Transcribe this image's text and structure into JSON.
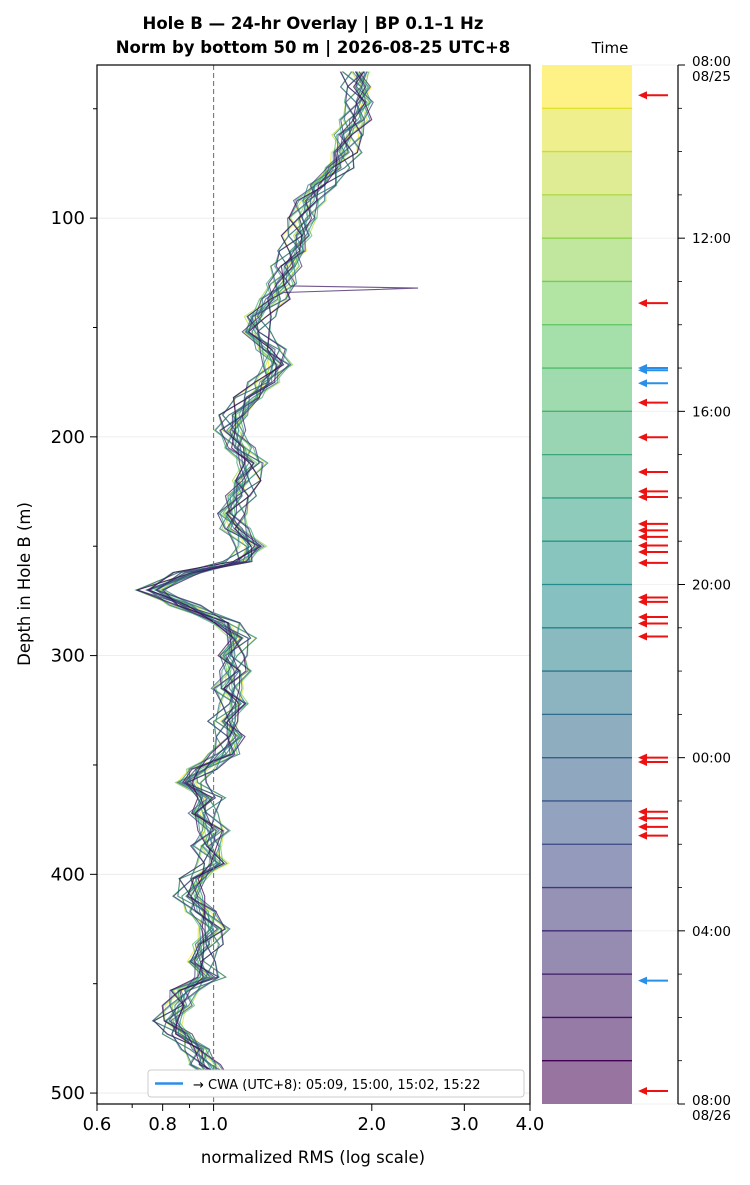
{
  "chart_data": {
    "type": "line",
    "title_line1": "Hole B — 24-hr Overlay  |  BP 0.1–1 Hz",
    "title_line2": "Norm by bottom 50 m  |  2026-08-25 UTC+8",
    "xlabel": "normalized RMS  (log scale)",
    "ylabel": "Depth in Hole B (m)",
    "xscale": "log",
    "xlim": [
      0.6,
      4.0
    ],
    "ylim": [
      505,
      30
    ],
    "x_ticks": [
      {
        "value": 0.6,
        "label": "0.6"
      },
      {
        "value": 0.8,
        "label": "0.8"
      },
      {
        "value": 1.0,
        "label": "1.0"
      },
      {
        "value": 2.0,
        "label": "2.0"
      },
      {
        "value": 3.0,
        "label": "3.0"
      },
      {
        "value": 4.0,
        "label": "4.0"
      }
    ],
    "y_ticks": [
      {
        "value": 100,
        "label": "100"
      },
      {
        "value": 200,
        "label": "200"
      },
      {
        "value": 300,
        "label": "300"
      },
      {
        "value": 400,
        "label": "400"
      },
      {
        "value": 500,
        "label": "500"
      }
    ],
    "reference_line_x": 1.0,
    "grid": "horizontal",
    "colormap": [
      "#fde725",
      "#5ec962",
      "#21918c",
      "#3b528b",
      "#440154"
    ],
    "mean_profile": [
      [
        33,
        1.87
      ],
      [
        40,
        1.88
      ],
      [
        47,
        1.9
      ],
      [
        55,
        1.86
      ],
      [
        62,
        1.8
      ],
      [
        70,
        1.78
      ],
      [
        77,
        1.72
      ],
      [
        85,
        1.6
      ],
      [
        92,
        1.52
      ],
      [
        100,
        1.48
      ],
      [
        108,
        1.45
      ],
      [
        115,
        1.42
      ],
      [
        122,
        1.38
      ],
      [
        130,
        1.35
      ],
      [
        137,
        1.3
      ],
      [
        145,
        1.22
      ],
      [
        152,
        1.2
      ],
      [
        160,
        1.28
      ],
      [
        167,
        1.32
      ],
      [
        175,
        1.25
      ],
      [
        182,
        1.17
      ],
      [
        190,
        1.1
      ],
      [
        197,
        1.08
      ],
      [
        205,
        1.12
      ],
      [
        212,
        1.18
      ],
      [
        220,
        1.15
      ],
      [
        227,
        1.12
      ],
      [
        235,
        1.08
      ],
      [
        242,
        1.1
      ],
      [
        250,
        1.18
      ],
      [
        257,
        1.12
      ],
      [
        262,
        0.9
      ],
      [
        270,
        0.76
      ],
      [
        277,
        0.88
      ],
      [
        285,
        1.05
      ],
      [
        292,
        1.12
      ],
      [
        300,
        1.08
      ],
      [
        307,
        1.1
      ],
      [
        315,
        1.06
      ],
      [
        322,
        1.1
      ],
      [
        330,
        1.05
      ],
      [
        337,
        1.08
      ],
      [
        345,
        1.05
      ],
      [
        352,
        0.95
      ],
      [
        358,
        0.9
      ],
      [
        365,
        0.98
      ],
      [
        372,
        0.95
      ],
      [
        380,
        1.0
      ],
      [
        387,
        0.97
      ],
      [
        395,
        1.0
      ],
      [
        402,
        0.92
      ],
      [
        410,
        0.9
      ],
      [
        417,
        0.95
      ],
      [
        425,
        1.0
      ],
      [
        432,
        0.97
      ],
      [
        440,
        0.94
      ],
      [
        447,
        0.98
      ],
      [
        453,
        0.88
      ],
      [
        460,
        0.86
      ],
      [
        467,
        0.82
      ],
      [
        473,
        0.86
      ],
      [
        480,
        0.93
      ],
      [
        487,
        0.96
      ],
      [
        495,
        1.05
      ],
      [
        500,
        1.12
      ]
    ],
    "spike": {
      "depth": 132,
      "value": 2.45
    },
    "legend": {
      "label": "→ CWA (UTC+8): 05:09, 15:00, 15:02, 15:22",
      "color": "#2a8fe8"
    },
    "time_axis": {
      "label": "Time",
      "ticks": [
        {
          "hour": 0,
          "label": "08:00",
          "sublabel": "08/25"
        },
        {
          "hour": 4,
          "label": "12:00",
          "sublabel": ""
        },
        {
          "hour": 8,
          "label": "16:00",
          "sublabel": ""
        },
        {
          "hour": 12,
          "label": "20:00",
          "sublabel": ""
        },
        {
          "hour": 16,
          "label": "00:00",
          "sublabel": ""
        },
        {
          "hour": 20,
          "label": "04:00",
          "sublabel": ""
        },
        {
          "hour": 24,
          "label": "08:00",
          "sublabel": "08/26"
        }
      ],
      "bands": 24
    },
    "event_arrows": {
      "red_hours": [
        0.7,
        5.5,
        7.8,
        8.6,
        9.4,
        9.85,
        9.98,
        10.6,
        10.75,
        10.9,
        11.1,
        11.25,
        11.5,
        12.3,
        12.4,
        12.75,
        12.9,
        13.2,
        16.0,
        16.1,
        17.25,
        17.4,
        17.6,
        17.8,
        23.7
      ],
      "blue_hours": [
        7.0,
        7.05,
        7.35,
        21.15
      ]
    }
  }
}
